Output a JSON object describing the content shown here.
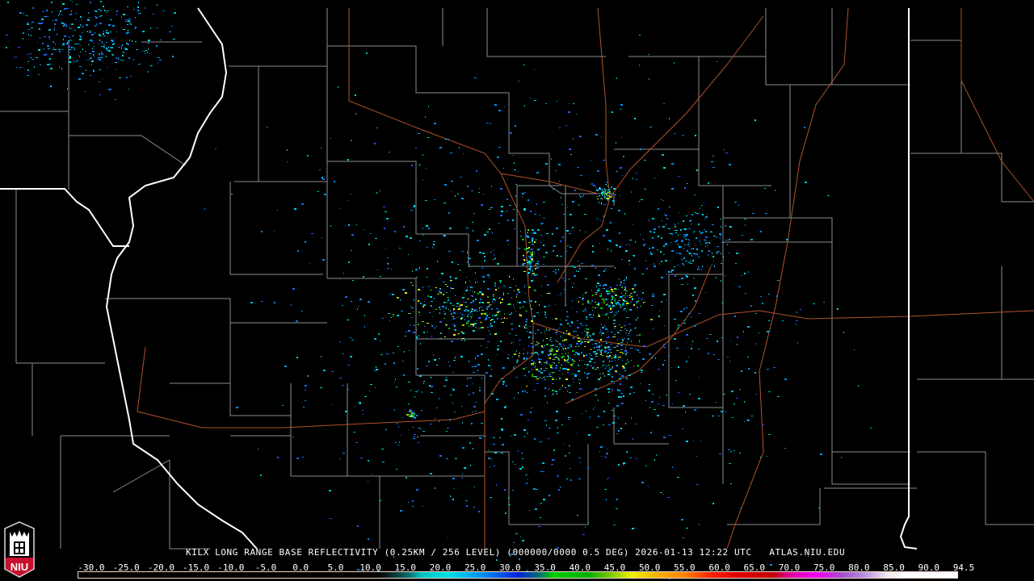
{
  "caption": {
    "product": "KILX LONG RANGE BASE REFLECTIVITY (0.25KM / 256 LEVEL) (000000/0000 0.5 DEG)",
    "timestamp": "2026-01-13 12:22 UTC",
    "site": "ATLAS.NIU.EDU"
  },
  "colorbar": {
    "labels": [
      "-30.0",
      "-25.0",
      "-20.0",
      "-15.0",
      "-10.0",
      "-5.0",
      "0.0",
      "5.0",
      "10.0",
      "15.0",
      "20.0",
      "25.0",
      "30.0",
      "35.0",
      "40.0",
      "45.0",
      "50.0",
      "55.0",
      "60.0",
      "65.0",
      "70.0",
      "75.0",
      "80.0",
      "85.0",
      "90.0",
      "94.5"
    ],
    "unit_range": [
      -30,
      94.5
    ]
  },
  "logo": {
    "text": "NIU",
    "color": "#c8102e"
  },
  "colors": {
    "state_border": "#ffffff",
    "county_border": "#8c8c8c",
    "highway": "#b0532a",
    "background": "#000000"
  }
}
